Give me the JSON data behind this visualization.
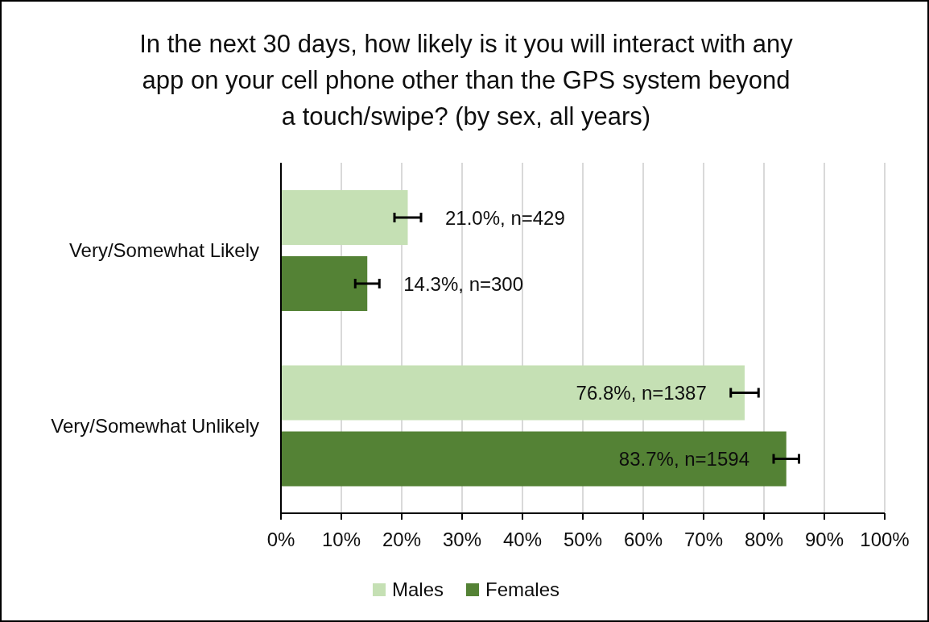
{
  "chart_data": {
    "type": "bar",
    "orientation": "horizontal",
    "title": "In the next 30 days, how likely is it you will interact with any app on your cell phone other than the GPS system beyond a touch/swipe? (by sex, all years)",
    "categories": [
      "Very/Somewhat Likely",
      "Very/Somewhat Unlikely"
    ],
    "series": [
      {
        "name": "Males",
        "color": "#c5e0b4",
        "values": [
          21.0,
          76.8
        ],
        "errors": [
          2.2,
          2.3
        ],
        "value_labels": [
          "21.0%, n=429",
          "76.8%, n=1387"
        ]
      },
      {
        "name": "Females",
        "color": "#548235",
        "values": [
          14.3,
          83.7
        ],
        "errors": [
          2.0,
          2.1
        ],
        "value_labels": [
          "14.3%, n=300",
          "83.7%, n=1594"
        ]
      }
    ],
    "xlim": [
      0,
      100
    ],
    "xticks": [
      {
        "value": 0,
        "label": "0%"
      },
      {
        "value": 10,
        "label": "10%"
      },
      {
        "value": 20,
        "label": "20%"
      },
      {
        "value": 30,
        "label": "30%"
      },
      {
        "value": 40,
        "label": "40%"
      },
      {
        "value": 50,
        "label": "50%"
      },
      {
        "value": 60,
        "label": "60%"
      },
      {
        "value": 70,
        "label": "70%"
      },
      {
        "value": 80,
        "label": "80%"
      },
      {
        "value": 90,
        "label": "90%"
      },
      {
        "value": 100,
        "label": "100%"
      }
    ],
    "grid": "x",
    "legend": "bottom"
  }
}
